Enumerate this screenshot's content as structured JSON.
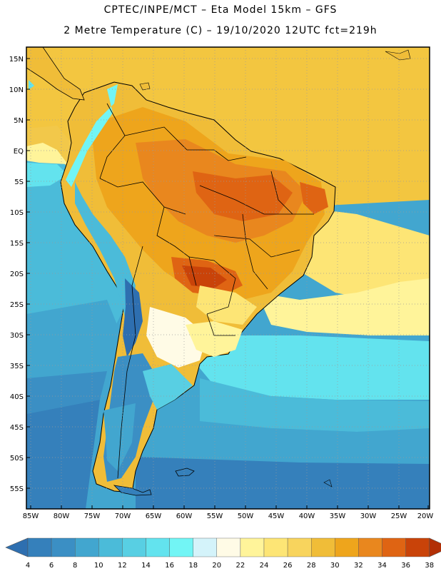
{
  "header": {
    "line1": "CPTEC/INPE/MCT –  Eta Model 15km – GFS",
    "line2": "2 Metre Temperature (C) – 19/10/2020 12UTC fct=219h"
  },
  "map": {
    "lat_labels": [
      "15N",
      "10N",
      "5N",
      "EQ",
      "5S",
      "10S",
      "15S",
      "20S",
      "25S",
      "30S",
      "35S",
      "40S",
      "45S",
      "50S",
      "55S"
    ],
    "lon_labels": [
      "85W",
      "80W",
      "75W",
      "70W",
      "65W",
      "60W",
      "55W",
      "50W",
      "45W",
      "40W",
      "35W",
      "30W",
      "25W",
      "20W"
    ]
  },
  "colorbar": {
    "labels": [
      "4",
      "6",
      "8",
      "10",
      "12",
      "14",
      "16",
      "18",
      "20",
      "22",
      "24",
      "26",
      "28",
      "30",
      "32",
      "34",
      "36",
      "38"
    ],
    "colors": [
      "#2e6fb0",
      "#3580bb",
      "#3b8fc4",
      "#42a6cf",
      "#4bbbd9",
      "#58cfe3",
      "#63e3ee",
      "#72f5f5",
      "#d4f3fa",
      "#fffbe6",
      "#fff49a",
      "#fde575",
      "#f8d45d",
      "#f0bd38",
      "#eea51c",
      "#e9871e",
      "#df6413",
      "#c94309",
      "#b22f06"
    ]
  }
}
